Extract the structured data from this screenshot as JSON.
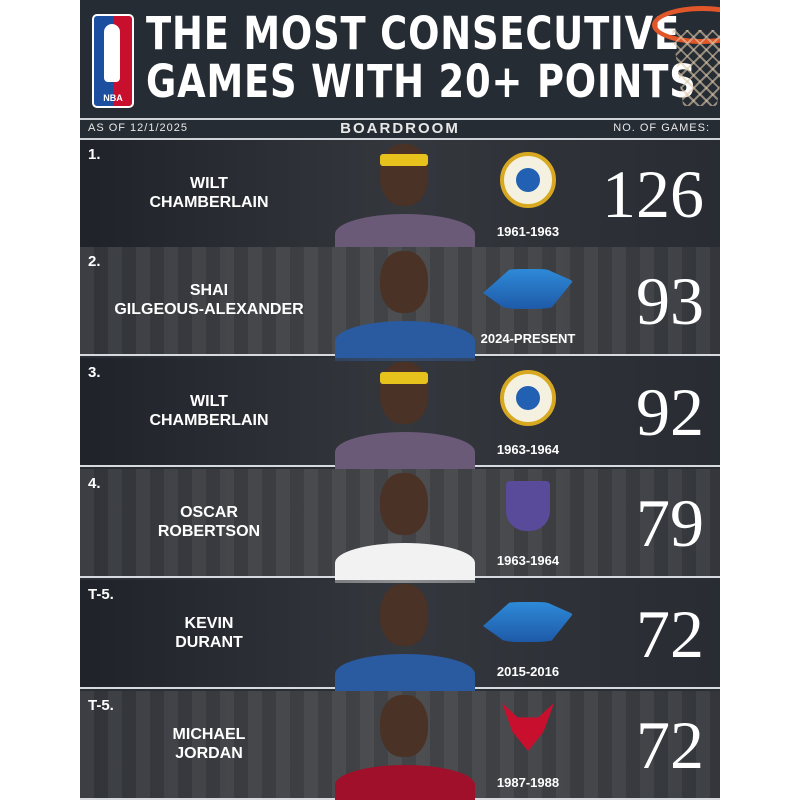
{
  "header": {
    "title_line1": "THE MOST CONSECUTIVE",
    "title_line2": "GAMES WITH 20+ POINTS",
    "logo_text": "NBA"
  },
  "subbar": {
    "as_of": "AS OF 12/1/2025",
    "brand": "BOARDROOM",
    "column_label": "NO. OF GAMES:"
  },
  "rows": [
    {
      "rank": "1.",
      "name_line1": "WILT",
      "name_line2": "CHAMBERLAIN",
      "team_logo": "san-francisco-warriors-logo",
      "years": "1961-1963",
      "games": "126"
    },
    {
      "rank": "2.",
      "name_line1": "SHAI",
      "name_line2": "GILGEOUS-ALEXANDER",
      "team_logo": "okc-thunder-logo",
      "years": "2024-PRESENT",
      "games": "93"
    },
    {
      "rank": "3.",
      "name_line1": "WILT",
      "name_line2": "CHAMBERLAIN",
      "team_logo": "san-francisco-warriors-logo",
      "years": "1963-1964",
      "games": "92"
    },
    {
      "rank": "4.",
      "name_line1": "OSCAR",
      "name_line2": "ROBERTSON",
      "team_logo": "sacramento-kings-logo",
      "years": "1963-1964",
      "games": "79"
    },
    {
      "rank": "T-5.",
      "name_line1": "KEVIN",
      "name_line2": "DURANT",
      "team_logo": "okc-thunder-logo",
      "years": "2015-2016",
      "games": "72"
    },
    {
      "rank": "T-5.",
      "name_line1": "MICHAEL",
      "name_line2": "JORDAN",
      "team_logo": "chicago-bulls-logo",
      "years": "1987-1988",
      "games": "72"
    }
  ]
}
